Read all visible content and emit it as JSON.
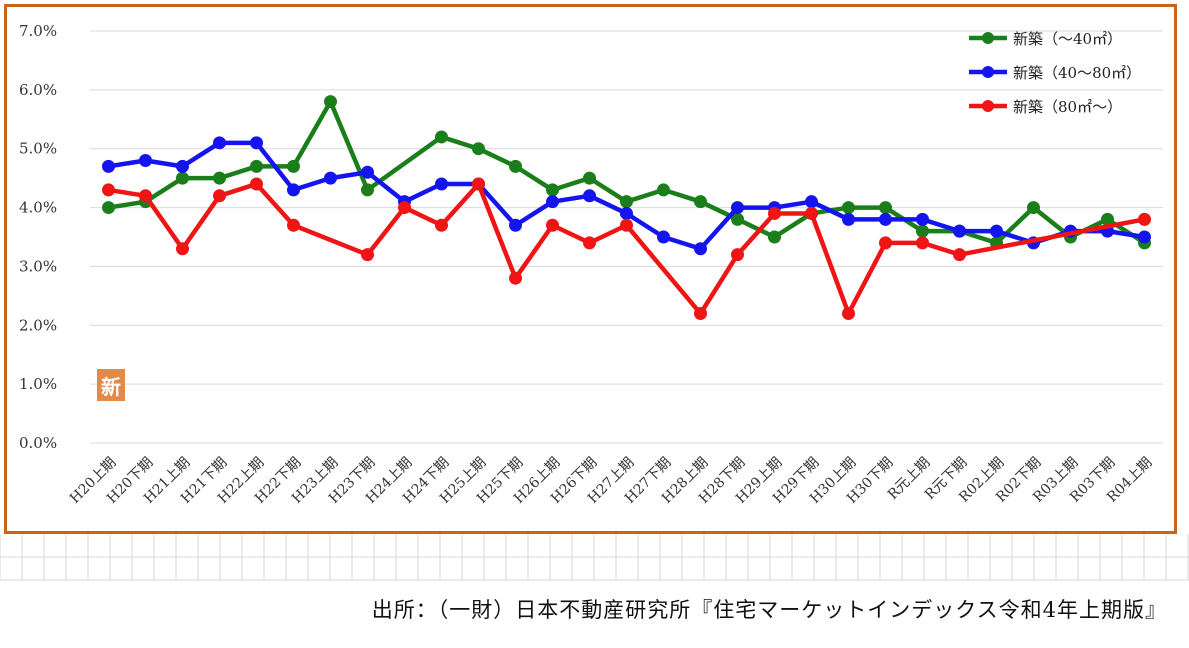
{
  "badge_text": "新",
  "source_text": "出所：（一財）日本不動産研究所『住宅マーケットインデックス令和4年上期版』",
  "chart_data": {
    "type": "line",
    "title": "",
    "xlabel": "",
    "ylabel": "",
    "ylim": [
      0,
      7
    ],
    "y_ticks": [
      "0.0%",
      "1.0%",
      "2.0%",
      "3.0%",
      "4.0%",
      "5.0%",
      "6.0%",
      "7.0%"
    ],
    "grid": "horizontal",
    "legend_position": "top-right",
    "categories": [
      "H20上期",
      "H20下期",
      "H21上期",
      "H21下期",
      "H22上期",
      "H22下期",
      "H23上期",
      "H23下期",
      "H24上期",
      "H24下期",
      "H25上期",
      "H25下期",
      "H26上期",
      "H26下期",
      "H27上期",
      "H27下期",
      "H28上期",
      "H28下期",
      "H29上期",
      "H29下期",
      "H30上期",
      "H30下期",
      "R元上期",
      "R元下期",
      "R02上期",
      "R02下期",
      "R03上期",
      "R03下期",
      "R04上期"
    ],
    "series": [
      {
        "name": "新築（～40㎡）",
        "color": "#1a7f1a",
        "values": [
          4.0,
          4.1,
          4.5,
          4.5,
          4.7,
          4.7,
          5.8,
          4.3,
          null,
          5.2,
          5.0,
          4.7,
          4.3,
          4.5,
          4.1,
          4.3,
          4.1,
          3.8,
          3.5,
          3.9,
          4.0,
          4.0,
          3.6,
          3.6,
          3.4,
          4.0,
          3.5,
          3.8,
          3.4
        ]
      },
      {
        "name": "新築（40～80㎡）",
        "color": "#1414f0",
        "values": [
          4.7,
          4.8,
          4.7,
          5.1,
          5.1,
          4.3,
          4.5,
          4.6,
          4.1,
          4.4,
          4.4,
          3.7,
          4.1,
          4.2,
          3.9,
          3.5,
          3.3,
          4.0,
          4.0,
          4.1,
          3.8,
          3.8,
          3.8,
          3.6,
          3.6,
          3.4,
          3.6,
          3.6,
          3.5
        ]
      },
      {
        "name": "新築（80㎡～）",
        "color": "#f01414",
        "values": [
          4.3,
          4.2,
          3.3,
          4.2,
          4.4,
          3.7,
          null,
          3.2,
          4.0,
          3.7,
          4.4,
          2.8,
          3.7,
          3.4,
          3.7,
          null,
          2.2,
          3.2,
          3.9,
          3.9,
          2.2,
          3.4,
          3.4,
          3.2,
          null,
          null,
          null,
          null,
          3.8
        ]
      }
    ]
  }
}
